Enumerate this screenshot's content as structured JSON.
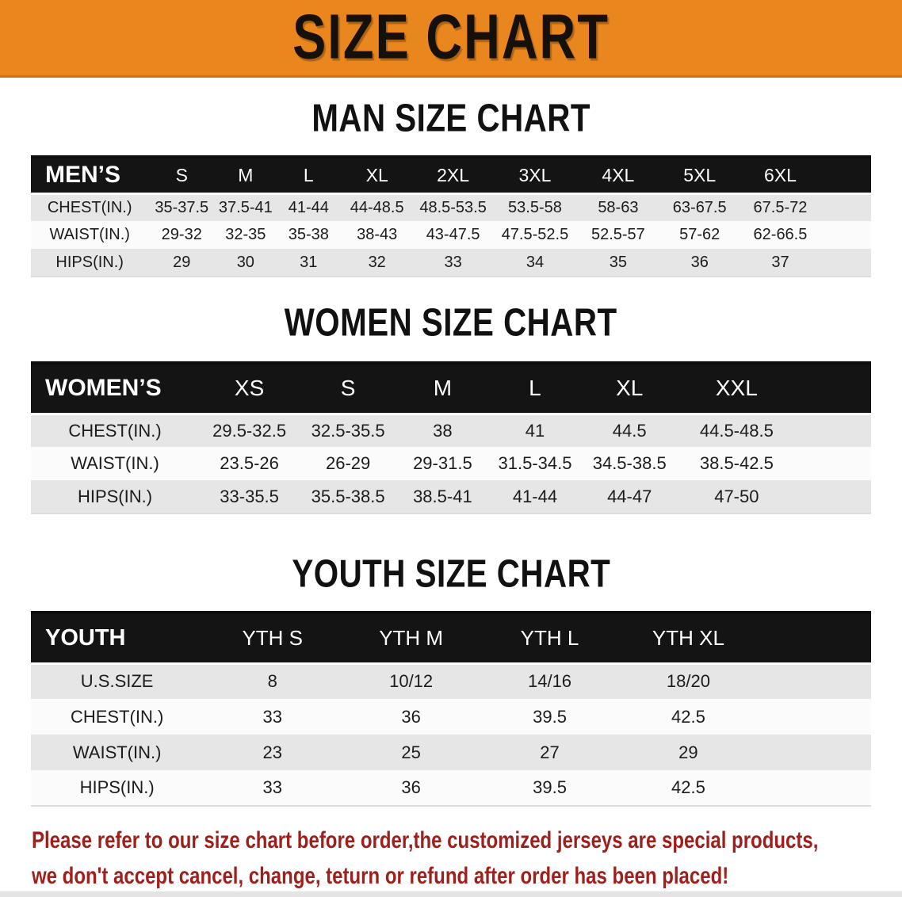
{
  "banner": {
    "title": "SIZE CHART",
    "bg_color": "#E9861E"
  },
  "headings": {
    "men": "MAN SIZE CHART",
    "women": "WOMEN SIZE CHART",
    "youth": "YOUTH SIZE CHART"
  },
  "tables": {
    "men": {
      "header": [
        "MEN’S",
        "S",
        "M",
        "L",
        "XL",
        "2XL",
        "3XL",
        "4XL",
        "5XL",
        "6XL"
      ],
      "rows": [
        {
          "label": "CHEST(IN.)",
          "values": [
            "35-37.5",
            "37.5-41",
            "41-44",
            "44-48.5",
            "48.5-53.5",
            "53.5-58",
            "58-63",
            "63-67.5",
            "67.5-72"
          ]
        },
        {
          "label": "WAIST(IN.)",
          "values": [
            "29-32",
            "32-35",
            "35-38",
            "38-43",
            "43-47.5",
            "47.5-52.5",
            "52.5-57",
            "57-62",
            "62-66.5"
          ]
        },
        {
          "label": "HIPS(IN.)",
          "values": [
            "29",
            "30",
            "31",
            "32",
            "33",
            "34",
            "35",
            "36",
            "37"
          ]
        }
      ]
    },
    "women": {
      "header": [
        "WOMEN’S",
        "XS",
        "S",
        "M",
        "L",
        "XL",
        "XXL"
      ],
      "rows": [
        {
          "label": "CHEST(IN.)",
          "values": [
            "29.5-32.5",
            "32.5-35.5",
            "38",
            "41",
            "44.5",
            "44.5-48.5"
          ]
        },
        {
          "label": "WAIST(IN.)",
          "values": [
            "23.5-26",
            "26-29",
            "29-31.5",
            "31.5-34.5",
            "34.5-38.5",
            "38.5-42.5"
          ]
        },
        {
          "label": "HIPS(IN.)",
          "values": [
            "33-35.5",
            "35.5-38.5",
            "38.5-41",
            "41-44",
            "44-47",
            "47-50"
          ]
        }
      ]
    },
    "youth": {
      "header": [
        "YOUTH",
        "YTH S",
        "YTH M",
        "YTH L",
        "YTH XL"
      ],
      "rows": [
        {
          "label": "U.S.SIZE",
          "values": [
            "8",
            "10/12",
            "14/16",
            "18/20"
          ]
        },
        {
          "label": "CHEST(IN.)",
          "values": [
            "33",
            "36",
            "39.5",
            "42.5"
          ]
        },
        {
          "label": "WAIST(IN.)",
          "values": [
            "23",
            "25",
            "27",
            "29"
          ]
        },
        {
          "label": "HIPS(IN.)",
          "values": [
            "33",
            "36",
            "39.5",
            "42.5"
          ]
        }
      ]
    }
  },
  "footer": {
    "line1": "Please refer to our size chart before order,the customized jerseys are special products,",
    "line2": "we don't accept cancel, change, teturn or refund after order has been placed!",
    "text_color": "#9E1F1C"
  },
  "colors": {
    "banner_bg": "#E9861E",
    "table_header_bg": "#141414",
    "row_shaded_bg": "#E6E6E6",
    "row_plain_bg": "#FBFBFB",
    "footer_red": "#9E1F1C"
  }
}
